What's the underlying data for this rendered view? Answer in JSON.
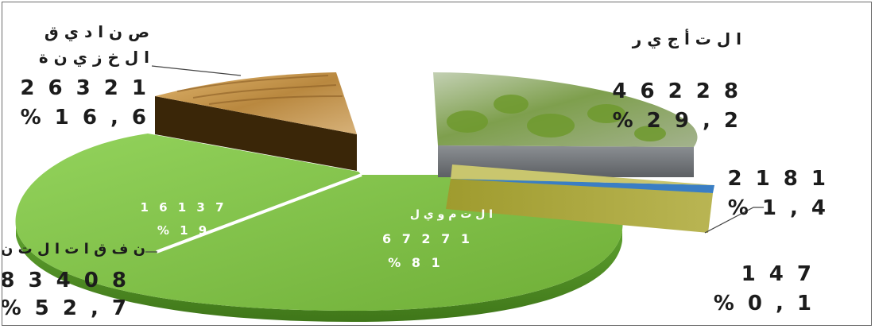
{
  "colors": {
    "label_text": "#1c1c1c",
    "dev_top": "#7fc447",
    "dev_side": "#4f8f24",
    "wheat_top": "#c79a55",
    "wheat_side": "#3a2608",
    "olive_top": "#8ea36c",
    "olive_side": "#6b6f73",
    "gold_top": "#a9a63a",
    "gold_side": "#7c7a1c",
    "blue_slice": "#3a7ec4"
  },
  "chart_data": {
    "type": "pie",
    "style": "3d-exploded",
    "title": "",
    "slices": [
      {
        "name": "التأجير",
        "value": 46228,
        "percent_label": "% 29,2",
        "value_label": "4 6 2 2 8",
        "pct_label": "% 2 9 , 2"
      },
      {
        "name": "",
        "value": 2181,
        "percent_label": "% 1,4",
        "value_label": "2 1 8 1",
        "pct_label": "% 1 , 4"
      },
      {
        "name": "",
        "value": 147,
        "percent_label": "% 0,1",
        "value_label": "1 4 7",
        "pct_label": "% 0 , 1"
      },
      {
        "name": "نفقات التنمية",
        "value": 83408,
        "percent_label": "% 52,7",
        "value_label": "8 3 4 0 8",
        "pct_label": "% 5 2 , 7",
        "sub_slices": [
          {
            "name": "",
            "value": 16137,
            "value_label": "1 6 1 3 7",
            "pct_label": "% 1 9"
          },
          {
            "name": "التمويل",
            "value": 67271,
            "value_label": "6 7 2 7 1",
            "pct_label": "% 8 1"
          }
        ]
      },
      {
        "name": "صناديق الخزينة",
        "value": 26321,
        "percent_label": "% 16,6",
        "value_label": "2 6 3 2 1",
        "pct_label": "% 1 6 , 6"
      }
    ],
    "labels": {
      "tajir": "ا ل ت أ ج ي ر",
      "sanadiq_line1": "ص ن ا د ي ق",
      "sanadiq_line2": "ا ل خ ز ي ن ة",
      "nafaqat": "ن ف ق ا ت  ا ل ت ن م ي ة",
      "tamwil": "ا ل ت م و ي ل"
    },
    "legend": "none"
  }
}
